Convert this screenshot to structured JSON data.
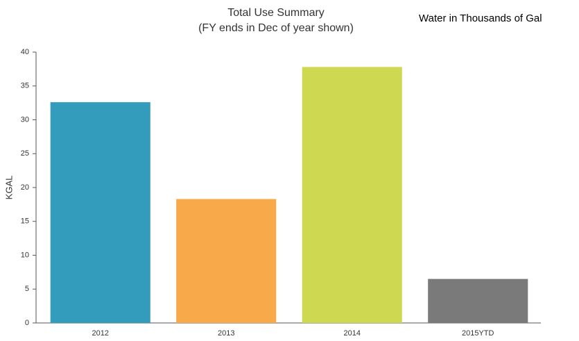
{
  "chart_data": {
    "type": "bar",
    "title": "Total Use Summary",
    "subtitle": "(FY ends in Dec of year shown)",
    "annotation": "Water in Thousands of Gal",
    "y_label": "KGAL",
    "categories": [
      "2012",
      "2013",
      "2014",
      "2015YTD"
    ],
    "values": [
      32.6,
      18.3,
      37.8,
      6.5
    ],
    "colors": [
      "#339bbb",
      "#f8aa4b",
      "#cfd851",
      "#7a7a7a"
    ],
    "ylim": [
      0,
      40
    ],
    "yticks": [
      0,
      5,
      10,
      15,
      20,
      25,
      30,
      35,
      40
    ],
    "grid": false
  }
}
